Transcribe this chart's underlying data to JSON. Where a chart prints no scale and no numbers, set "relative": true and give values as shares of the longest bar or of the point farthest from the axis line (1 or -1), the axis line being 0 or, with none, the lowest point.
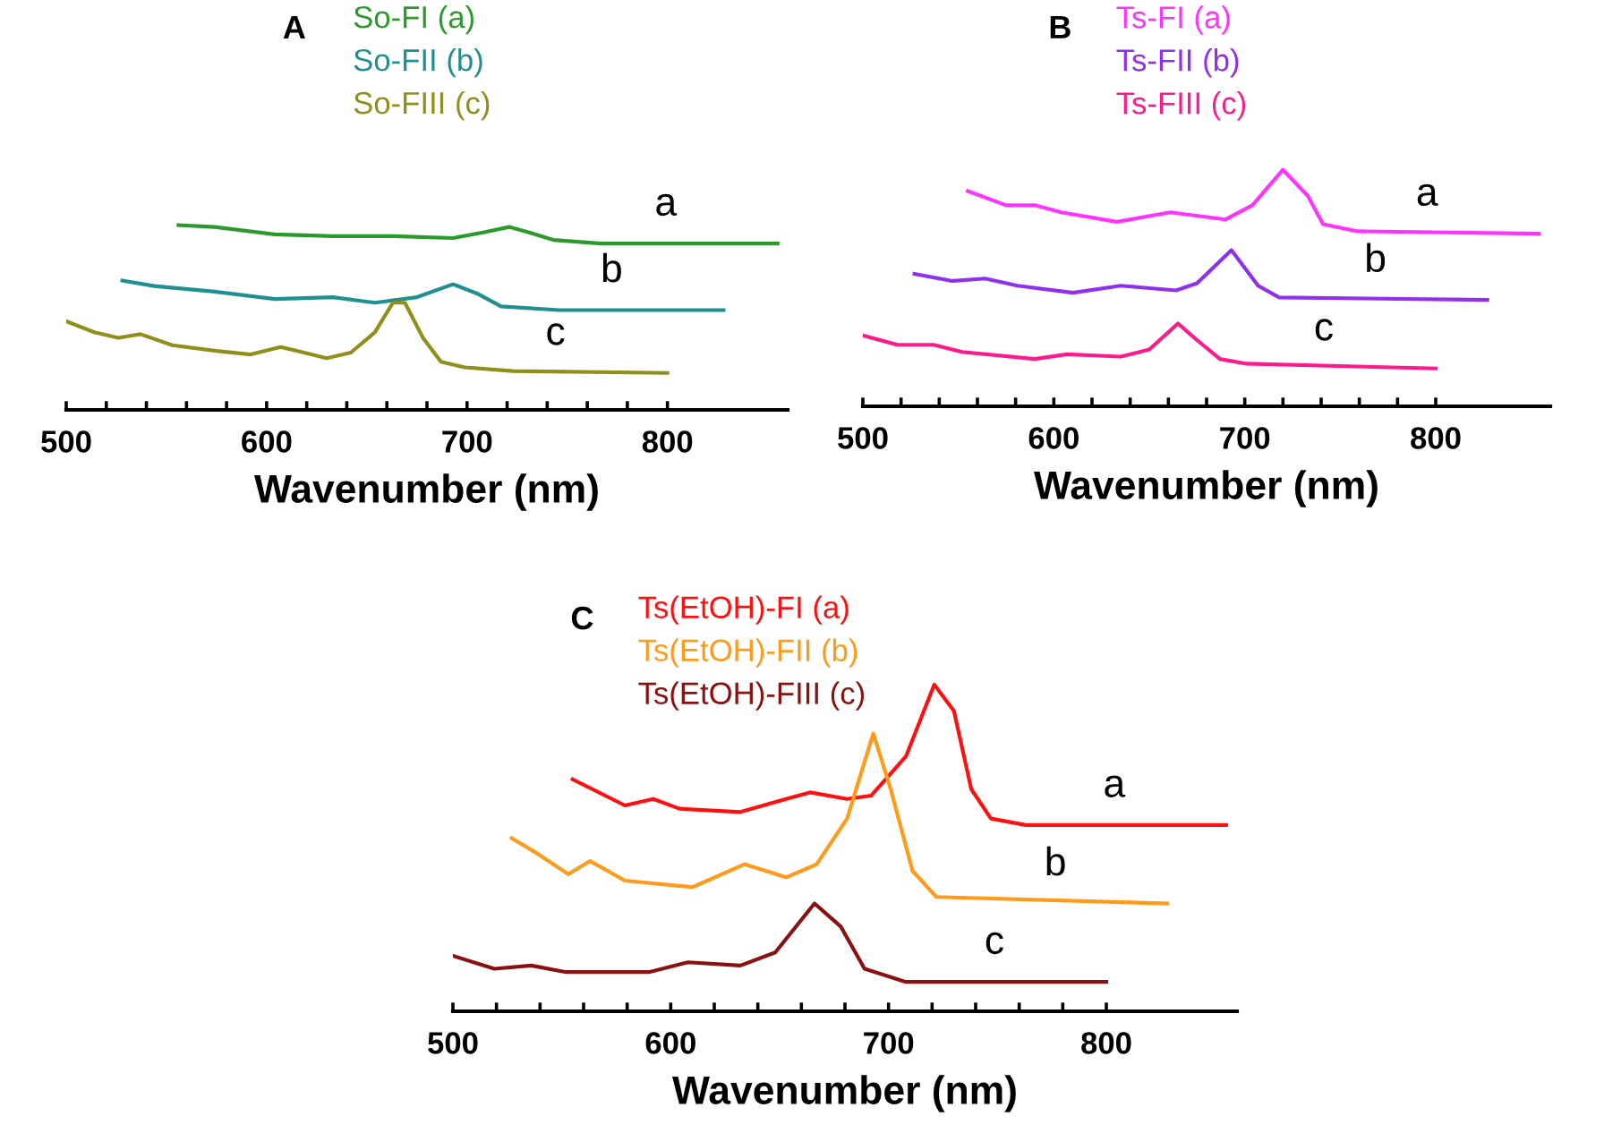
{
  "chart_data": [
    {
      "type": "line",
      "title": "A",
      "xlabel": "Wavenumber (nm)",
      "relative": true,
      "legend": "top left",
      "grid": false,
      "xlim": [
        500,
        860
      ],
      "xticks": [
        500,
        {
          "value": 520,
          "label": null
        },
        {
          "value": 540,
          "label": null
        },
        {
          "value": 560,
          "label": null
        },
        {
          "value": 580,
          "label": null
        },
        600,
        {
          "value": 620,
          "label": null
        },
        {
          "value": 640,
          "label": null
        },
        {
          "value": 660,
          "label": null
        },
        {
          "value": 680,
          "label": null
        },
        700,
        {
          "value": 720,
          "label": null
        },
        {
          "value": 740,
          "label": null
        },
        {
          "value": 760,
          "label": null
        },
        {
          "value": 780,
          "label": null
        },
        800
      ],
      "annotations": [
        "a",
        "b",
        "c"
      ],
      "series": [
        {
          "name": "So-FI (a)",
          "color": "#2a9a2a",
          "x": [
            556,
            574,
            604,
            633,
            663,
            693,
            708,
            721,
            731,
            743,
            767,
            812,
            855
          ],
          "values": [
            1.0,
            0.99,
            0.95,
            0.94,
            0.94,
            0.93,
            0.96,
            0.99,
            0.96,
            0.92,
            0.9,
            0.9,
            0.9
          ]
        },
        {
          "name": "So-FII (b)",
          "color": "#1e9090",
          "x": [
            528,
            544,
            574,
            604,
            633,
            654,
            675,
            693,
            705,
            717,
            746,
            828
          ],
          "values": [
            0.7,
            0.67,
            0.64,
            0.6,
            0.61,
            0.58,
            0.61,
            0.68,
            0.63,
            0.56,
            0.54,
            0.54
          ]
        },
        {
          "name": "So-FIII (c)",
          "color": "#8f8f1a",
          "x": [
            500,
            514,
            526,
            537,
            553,
            574,
            592,
            607,
            615,
            630,
            642,
            654,
            663,
            669,
            678,
            687,
            699,
            723,
            800
          ],
          "values": [
            0.48,
            0.42,
            0.39,
            0.41,
            0.35,
            0.32,
            0.3,
            0.34,
            0.32,
            0.28,
            0.31,
            0.42,
            0.58,
            0.58,
            0.39,
            0.26,
            0.23,
            0.21,
            0.2
          ]
        }
      ]
    },
    {
      "type": "line",
      "title": "B",
      "xlabel": "Wavenumber (nm)",
      "relative": true,
      "legend": "top left",
      "grid": false,
      "xlim": [
        500,
        860
      ],
      "xticks": [
        500,
        {
          "value": 520,
          "label": null
        },
        {
          "value": 540,
          "label": null
        },
        {
          "value": 560,
          "label": null
        },
        {
          "value": 580,
          "label": null
        },
        600,
        {
          "value": 620,
          "label": null
        },
        {
          "value": 640,
          "label": null
        },
        {
          "value": 660,
          "label": null
        },
        {
          "value": 680,
          "label": null
        },
        700,
        {
          "value": 720,
          "label": null
        },
        {
          "value": 740,
          "label": null
        },
        {
          "value": 760,
          "label": null
        },
        {
          "value": 780,
          "label": null
        },
        800
      ],
      "annotations": [
        "a",
        "b",
        "c"
      ],
      "series": [
        {
          "name": "Ts-FI (a)",
          "color": "#ff33ff",
          "x": [
            555,
            575,
            590,
            604,
            633,
            661,
            690,
            704,
            720,
            733,
            741,
            759,
            854
          ],
          "values": [
            0.91,
            0.85,
            0.85,
            0.82,
            0.78,
            0.82,
            0.79,
            0.85,
            1.0,
            0.89,
            0.77,
            0.74,
            0.73
          ]
        },
        {
          "name": "Ts-FII (b)",
          "color": "#8f2ff0",
          "x": [
            527,
            547,
            564,
            581,
            610,
            635,
            664,
            675,
            693,
            707,
            718,
            827
          ],
          "values": [
            0.56,
            0.53,
            0.54,
            0.51,
            0.48,
            0.51,
            0.49,
            0.52,
            0.66,
            0.51,
            0.46,
            0.45
          ]
        },
        {
          "name": "Ts-FIII (c)",
          "color": "#ff1a8c",
          "x": [
            500,
            518,
            537,
            552,
            590,
            607,
            635,
            650,
            665,
            675,
            687,
            701,
            800
          ],
          "values": [
            0.3,
            0.26,
            0.26,
            0.23,
            0.2,
            0.22,
            0.21,
            0.24,
            0.35,
            0.28,
            0.2,
            0.18,
            0.16
          ]
        }
      ]
    },
    {
      "type": "line",
      "title": "C",
      "xlabel": "Wavenumber (nm)",
      "relative": true,
      "legend": "top left",
      "grid": false,
      "xlim": [
        500,
        860
      ],
      "xticks": [
        500,
        {
          "value": 520,
          "label": null
        },
        {
          "value": 540,
          "label": null
        },
        {
          "value": 560,
          "label": null
        },
        {
          "value": 580,
          "label": null
        },
        600,
        {
          "value": 620,
          "label": null
        },
        {
          "value": 640,
          "label": null
        },
        {
          "value": 660,
          "label": null
        },
        {
          "value": 680,
          "label": null
        },
        700,
        {
          "value": 720,
          "label": null
        },
        {
          "value": 740,
          "label": null
        },
        {
          "value": 760,
          "label": null
        },
        {
          "value": 780,
          "label": null
        },
        800
      ],
      "annotations": [
        "a",
        "b",
        "c"
      ],
      "series": [
        {
          "name": "Ts(EtOH)-FI (a)",
          "color": "#ff1010",
          "x": [
            555,
            579,
            592,
            604,
            632,
            653,
            664,
            681,
            692,
            708,
            721,
            730,
            738,
            747,
            763,
            855
          ],
          "values": [
            0.71,
            0.63,
            0.65,
            0.62,
            0.61,
            0.65,
            0.67,
            0.65,
            0.66,
            0.78,
            1.0,
            0.92,
            0.68,
            0.59,
            0.57,
            0.57
          ]
        },
        {
          "name": "Ts(EtOH)-FII (b)",
          "color": "#ff9a1a",
          "x": [
            527,
            537,
            553,
            563,
            579,
            610,
            634,
            653,
            667,
            681,
            693,
            701,
            711,
            722,
            828
          ],
          "values": [
            0.53,
            0.49,
            0.42,
            0.46,
            0.4,
            0.38,
            0.45,
            0.41,
            0.45,
            0.59,
            0.85,
            0.68,
            0.43,
            0.35,
            0.33
          ]
        },
        {
          "name": "Ts(EtOH)-FIII (c)",
          "color": "#8b1010",
          "x": [
            500,
            519,
            536,
            552,
            590,
            608,
            632,
            648,
            666,
            678,
            689,
            708,
            800
          ],
          "values": [
            0.17,
            0.13,
            0.14,
            0.12,
            0.12,
            0.15,
            0.14,
            0.18,
            0.33,
            0.26,
            0.13,
            0.09,
            0.09
          ]
        }
      ]
    }
  ]
}
